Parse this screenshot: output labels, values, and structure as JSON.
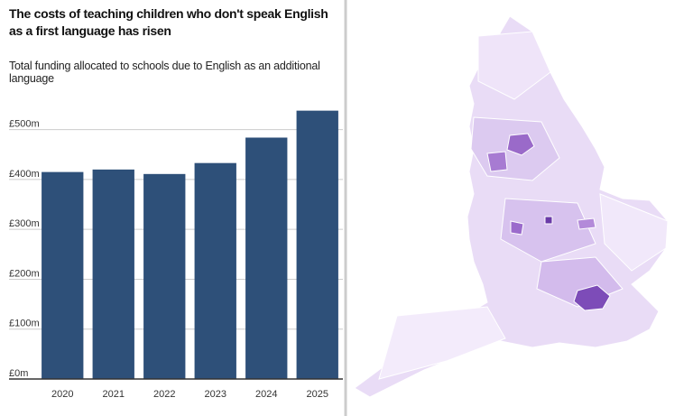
{
  "chart_data": {
    "type": "bar",
    "title": "The costs of teaching children who don't speak English as a first language has risen",
    "subtitle": "Total funding allocated to schools due to English as an additional language",
    "categories": [
      "2020",
      "2021",
      "2022",
      "2023",
      "2024",
      "2025"
    ],
    "values": [
      415,
      420,
      411,
      433,
      484,
      538
    ],
    "color": "#2e5079",
    "ylim": [
      0,
      550
    ],
    "yticks": [
      {
        "value": 0,
        "label": "£0m"
      },
      {
        "value": 100,
        "label": "£100m"
      },
      {
        "value": 200,
        "label": "£200m"
      },
      {
        "value": 300,
        "label": "£300m"
      },
      {
        "value": 400,
        "label": "£400m"
      },
      {
        "value": 500,
        "label": "£500m"
      }
    ],
    "grid": true
  }
}
